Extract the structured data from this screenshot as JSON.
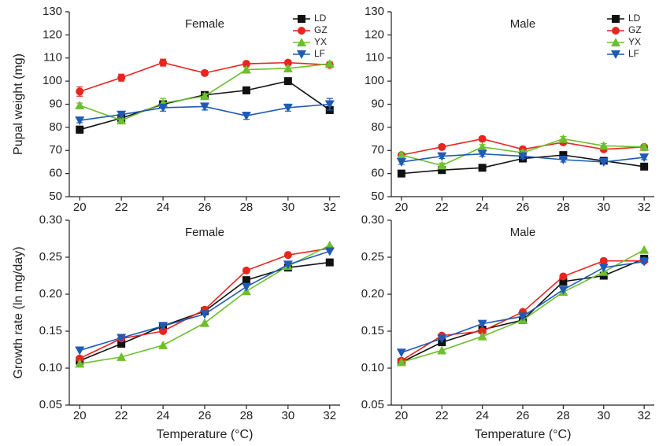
{
  "chart_data": [
    {
      "type": "line",
      "title": "Female",
      "ylabel": "Pupal weight (mg)",
      "x": [
        20,
        22,
        24,
        26,
        28,
        30,
        32
      ],
      "xlim": [
        19.5,
        32.5
      ],
      "xticks": [
        20,
        22,
        24,
        26,
        28,
        30,
        32
      ],
      "ylim": [
        50,
        130
      ],
      "yticks": [
        50,
        60,
        70,
        80,
        90,
        100,
        110,
        120,
        130
      ],
      "legend": "upper right",
      "series": [
        {
          "name": "LD",
          "color": "#111111",
          "marker": "square",
          "values": [
            79,
            84,
            90,
            94,
            96,
            100,
            87.5
          ],
          "errors": [
            1.5,
            1,
            1.5,
            1,
            1.5,
            1,
            1.5
          ]
        },
        {
          "name": "GZ",
          "color": "#e8251f",
          "marker": "circle",
          "values": [
            95.5,
            101.5,
            108,
            103.5,
            107.5,
            108,
            107
          ],
          "errors": [
            2,
            1.5,
            1.5,
            1,
            1,
            1,
            1
          ]
        },
        {
          "name": "YX",
          "color": "#6dbf2e",
          "marker": "triangle-up",
          "values": [
            89.5,
            83,
            90.5,
            93.5,
            105,
            105.5,
            107.5
          ],
          "errors": [
            1,
            1,
            2,
            1,
            1,
            1,
            1
          ]
        },
        {
          "name": "LF",
          "color": "#1f5bb5",
          "marker": "triangle-down",
          "values": [
            83,
            85.5,
            88.5,
            89,
            85,
            88.5,
            90
          ],
          "errors": [
            1,
            1,
            1.5,
            1.5,
            1.5,
            1.5,
            2.5
          ]
        }
      ]
    },
    {
      "type": "line",
      "title": "Male",
      "x": [
        20,
        22,
        24,
        26,
        28,
        30,
        32
      ],
      "xlim": [
        19.5,
        32.5
      ],
      "xticks": [
        20,
        22,
        24,
        26,
        28,
        30,
        32
      ],
      "ylim": [
        50,
        130
      ],
      "yticks": [
        50,
        60,
        70,
        80,
        90,
        100,
        110,
        120,
        130
      ],
      "legend": "upper right",
      "series": [
        {
          "name": "LD",
          "color": "#111111",
          "marker": "square",
          "values": [
            60,
            61.5,
            62.5,
            66.5,
            68,
            65.5,
            63
          ],
          "errors": [
            1,
            1,
            1,
            1,
            1,
            1,
            1
          ]
        },
        {
          "name": "GZ",
          "color": "#e8251f",
          "marker": "circle",
          "values": [
            68,
            71.5,
            75,
            70.5,
            73.5,
            70.5,
            71.5
          ],
          "errors": [
            1,
            1,
            1,
            1,
            1,
            1,
            1
          ]
        },
        {
          "name": "YX",
          "color": "#6dbf2e",
          "marker": "triangle-up",
          "values": [
            68,
            63.5,
            71.5,
            69,
            75,
            72,
            71.5
          ],
          "errors": [
            1,
            1,
            1,
            1,
            1,
            1,
            1
          ]
        },
        {
          "name": "LF",
          "color": "#1f5bb5",
          "marker": "triangle-down",
          "values": [
            65,
            67.5,
            68.5,
            67.5,
            66,
            65,
            67
          ],
          "errors": [
            1,
            1,
            1,
            1,
            1,
            1,
            1
          ]
        }
      ]
    },
    {
      "type": "line",
      "title": "Female",
      "ylabel": "Growth rate (ln mg/day)",
      "xlabel": "Temperature (°C)",
      "x": [
        20,
        22,
        24,
        26,
        28,
        30,
        32
      ],
      "xlim": [
        19.5,
        32.5
      ],
      "xticks": [
        20,
        22,
        24,
        26,
        28,
        30,
        32
      ],
      "ylim": [
        0.05,
        0.3
      ],
      "yticks": [
        0.05,
        {
          "value": 0.1,
          "label": "0.10"
        },
        0.15,
        {
          "value": 0.2,
          "label": "0.20"
        },
        0.25,
        {
          "value": 0.3,
          "label": "0.30"
        }
      ],
      "series": [
        {
          "name": "LD",
          "color": "#111111",
          "marker": "square",
          "values": [
            0.11,
            0.133,
            0.157,
            0.177,
            0.219,
            0.236,
            0.243
          ]
        },
        {
          "name": "GZ",
          "color": "#e8251f",
          "marker": "circle",
          "values": [
            0.113,
            0.14,
            0.15,
            0.179,
            0.232,
            0.253,
            0.262
          ]
        },
        {
          "name": "YX",
          "color": "#6dbf2e",
          "marker": "triangle-up",
          "values": [
            0.106,
            0.115,
            0.131,
            0.161,
            0.204,
            0.238,
            0.266
          ]
        },
        {
          "name": "LF",
          "color": "#1f5bb5",
          "marker": "triangle-down",
          "values": [
            0.124,
            0.141,
            0.157,
            0.173,
            0.21,
            0.24,
            0.258
          ]
        }
      ]
    },
    {
      "type": "line",
      "title": "Male",
      "xlabel": "Temperature (°C)",
      "x": [
        20,
        22,
        24,
        26,
        28,
        30,
        32
      ],
      "xlim": [
        19.5,
        32.5
      ],
      "xticks": [
        20,
        22,
        24,
        26,
        28,
        30,
        32
      ],
      "ylim": [
        0.05,
        0.3
      ],
      "yticks": [
        0.05,
        {
          "value": 0.1,
          "label": "0.10"
        },
        0.15,
        {
          "value": 0.2,
          "label": "0.20"
        },
        0.25,
        {
          "value": 0.3,
          "label": "0.30"
        }
      ],
      "series": [
        {
          "name": "LD",
          "color": "#111111",
          "marker": "square",
          "values": [
            0.108,
            0.135,
            0.152,
            0.165,
            0.217,
            0.225,
            0.248
          ]
        },
        {
          "name": "GZ",
          "color": "#e8251f",
          "marker": "circle",
          "values": [
            0.11,
            0.144,
            0.15,
            0.176,
            0.224,
            0.245,
            0.245
          ]
        },
        {
          "name": "YX",
          "color": "#6dbf2e",
          "marker": "triangle-up",
          "values": [
            0.108,
            0.124,
            0.143,
            0.165,
            0.203,
            0.23,
            0.26
          ]
        },
        {
          "name": "LF",
          "color": "#1f5bb5",
          "marker": "triangle-down",
          "values": [
            0.121,
            0.14,
            0.16,
            0.17,
            0.206,
            0.236,
            0.244
          ]
        }
      ]
    }
  ]
}
